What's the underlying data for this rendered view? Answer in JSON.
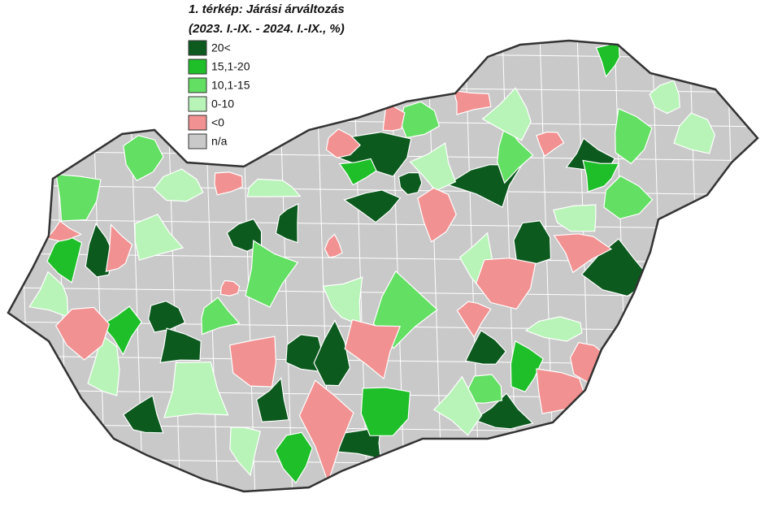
{
  "title": [
    "1. térkép: Járási árváltozás",
    "(2023. I.-IX. - 2024. I.-IX., %)"
  ],
  "legend": [
    {
      "label": "20<",
      "color": "#0d5a1f"
    },
    {
      "label": "15,1-20",
      "color": "#1fbf2a"
    },
    {
      "label": "10,1-15",
      "color": "#63df63"
    },
    {
      "label": "0-10",
      "color": "#b8f4b8"
    },
    {
      "label": "<0",
      "color": "#f29191"
    },
    {
      "label": "n/a",
      "color": "#c9c9c9"
    }
  ]
}
